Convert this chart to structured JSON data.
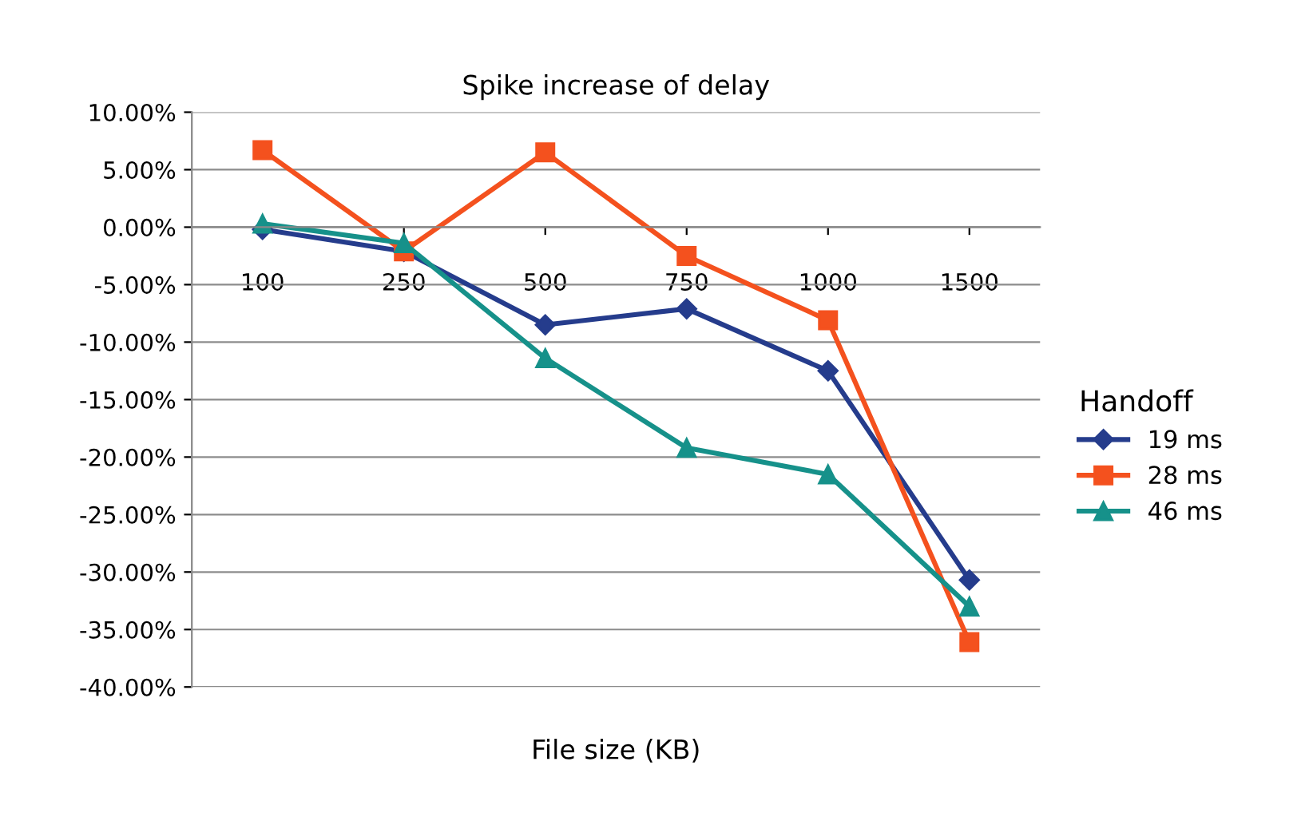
{
  "chart_data": {
    "type": "line",
    "title": "Spike increase of delay",
    "xlabel": "File size (KB)",
    "legend_title": "Handoff",
    "categories": [
      "100",
      "250",
      "500",
      "750",
      "1000",
      "1500"
    ],
    "series": [
      {
        "name": "19 ms",
        "color": "#253c8c",
        "marker": "diamond",
        "values": [
          -0.2,
          -2.1,
          -8.5,
          -7.1,
          -12.5,
          -30.7
        ]
      },
      {
        "name": "28 ms",
        "color": "#f4511e",
        "marker": "square",
        "values": [
          6.7,
          -2.1,
          6.5,
          -2.5,
          -8.1,
          -36.1
        ]
      },
      {
        "name": "46 ms",
        "color": "#16918a",
        "marker": "triangle",
        "values": [
          0.3,
          -1.4,
          -11.4,
          -19.2,
          -21.5,
          -33.0
        ]
      }
    ],
    "ylim": [
      -40,
      10
    ],
    "yticks": [
      {
        "value": -40,
        "label": "-40.00%"
      },
      {
        "value": -35,
        "label": "-35.00%"
      },
      {
        "value": -30,
        "label": "-30.00%"
      },
      {
        "value": -25,
        "label": "-25.00%"
      },
      {
        "value": -20,
        "label": "-20.00%"
      },
      {
        "value": -15,
        "label": "-15.00%"
      },
      {
        "value": -10,
        "label": "-10.00%"
      },
      {
        "value": -5,
        "label": "-5.00%"
      },
      {
        "value": 0,
        "label": "0.00%"
      },
      {
        "value": 5,
        "label": "5.00%"
      },
      {
        "value": 10,
        "label": "10.00%"
      }
    ],
    "grid": "y",
    "legend": "right",
    "line_style": "solid"
  }
}
